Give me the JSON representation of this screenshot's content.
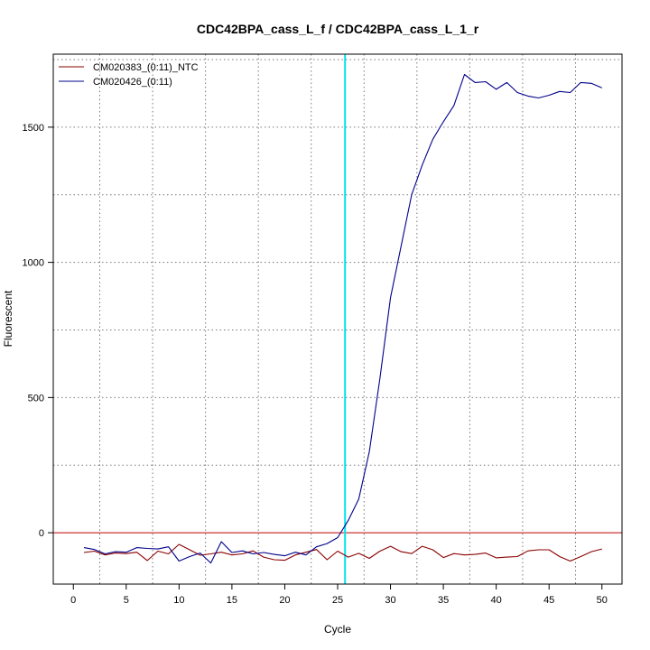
{
  "chart_data": {
    "type": "line",
    "title": "CDC42BPA_cass_L_f / CDC42BPA_cass_L_1_r",
    "xlabel": "Cycle",
    "ylabel": "Fluorescent",
    "xlim": [
      -1.9,
      51.9
    ],
    "ylim": [
      -190,
      1770
    ],
    "x_ticks": [
      0,
      5,
      10,
      15,
      20,
      25,
      30,
      35,
      40,
      45,
      50
    ],
    "y_ticks": [
      0,
      500,
      1000,
      1500
    ],
    "grid": true,
    "legend_position": "top-left",
    "threshold_y": 0,
    "threshold_color": "#c00000",
    "cycle_marker_x": 25.7,
    "cycle_marker_color": "#00e5ee",
    "x": [
      1,
      2,
      3,
      4,
      5,
      6,
      7,
      8,
      9,
      10,
      11,
      12,
      13,
      14,
      15,
      16,
      17,
      18,
      19,
      20,
      21,
      22,
      23,
      24,
      25,
      26,
      27,
      28,
      29,
      30,
      31,
      32,
      33,
      34,
      35,
      36,
      37,
      38,
      39,
      40,
      41,
      42,
      43,
      44,
      45,
      46,
      47,
      48,
      49,
      50
    ],
    "series": [
      {
        "name": "CM020383_(0:11)_NTC",
        "color": "#8b0000",
        "values": [
          -73,
          -68,
          -82,
          -75,
          -77,
          -72,
          -103,
          -68,
          -78,
          -43,
          -63,
          -83,
          -78,
          -72,
          -82,
          -78,
          -67,
          -90,
          -100,
          -102,
          -82,
          -72,
          -62,
          -100,
          -68,
          -90,
          -76,
          -95,
          -68,
          -50,
          -70,
          -77,
          -50,
          -63,
          -92,
          -77,
          -82,
          -80,
          -75,
          -93,
          -90,
          -88,
          -67,
          -63,
          -63,
          -88,
          -105,
          -88,
          -70,
          -60
        ]
      },
      {
        "name": "CM020426_(0:11)",
        "color": "#00008b",
        "values": [
          -55,
          -62,
          -78,
          -70,
          -72,
          -55,
          -58,
          -60,
          -52,
          -105,
          -88,
          -75,
          -112,
          -33,
          -73,
          -67,
          -78,
          -73,
          -80,
          -85,
          -72,
          -82,
          -52,
          -40,
          -18,
          45,
          125,
          300,
          570,
          870,
          1060,
          1250,
          1360,
          1455,
          1520,
          1580,
          1695,
          1665,
          1668,
          1640,
          1665,
          1628,
          1615,
          1608,
          1618,
          1632,
          1628,
          1665,
          1662,
          1645
        ]
      }
    ]
  }
}
